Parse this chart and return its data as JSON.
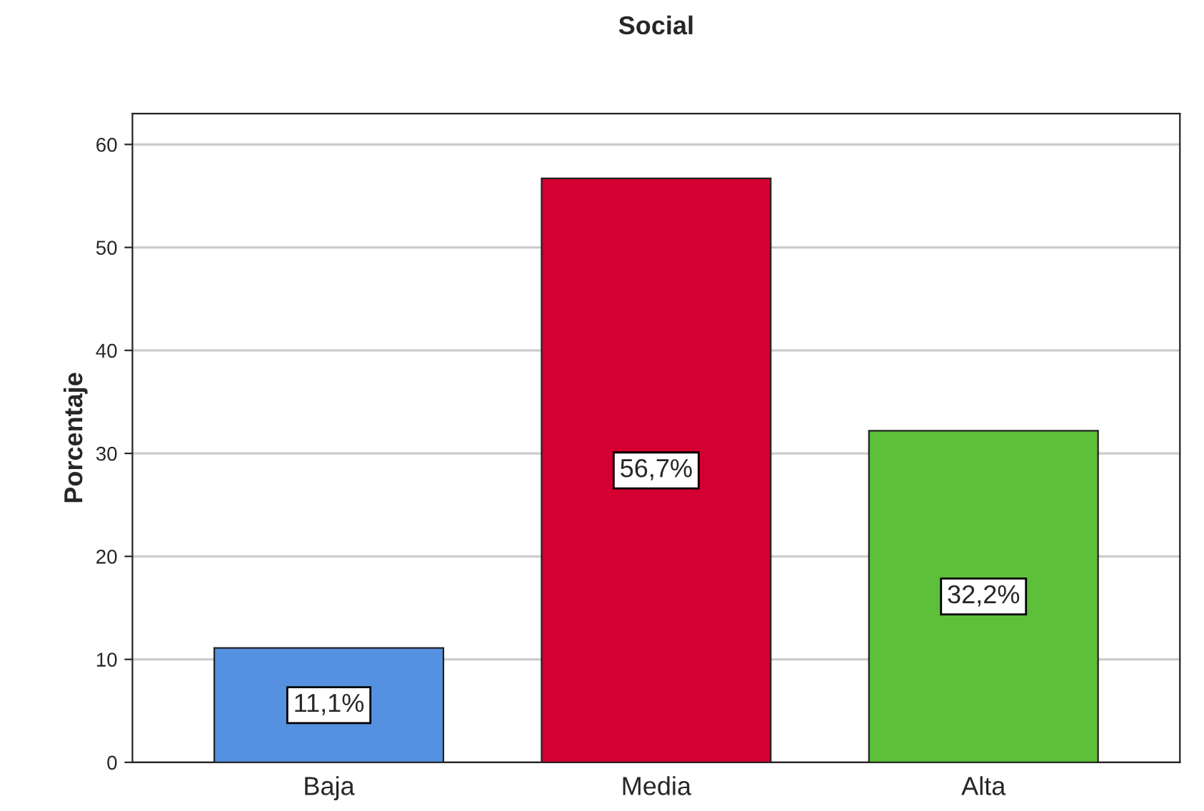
{
  "chart_data": {
    "type": "bar",
    "title": "Social",
    "ylabel": "Porcentaje",
    "categories": [
      "Baja",
      "Media",
      "Alta"
    ],
    "values": [
      11.1,
      56.7,
      32.2
    ],
    "colors": [
      "#5591e0",
      "#d40032",
      "#5dbf3a"
    ],
    "value_labels": [
      "11,1%",
      "56,7%",
      "32,2%"
    ],
    "ylim": [
      0,
      63
    ],
    "yticks": [
      0,
      10,
      20,
      30,
      40,
      50,
      60
    ],
    "grid": "y"
  }
}
